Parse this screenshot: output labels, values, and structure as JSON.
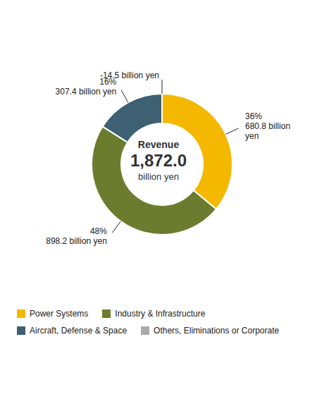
{
  "chart_data": {
    "type": "pie",
    "categories": [
      "Power Systems",
      "Industry & Infrastructure",
      "Aircraft, Defense & Space",
      "Others, Eliminations or Corporate"
    ],
    "values": [
      36,
      48,
      16,
      0.0001
    ],
    "colors": [
      "#F5B800",
      "#6B7C2E",
      "#3D6073",
      "#AAAAAA"
    ],
    "data_labels": true,
    "value_labels": [
      "36%\n680.8 billion\nyen",
      "48%\n898.2 billion yen",
      "16%\n307.4 billion yen",
      "-14.5 billion yen"
    ],
    "annotations": [
      "Revenue",
      "1,872.0",
      "billion yen"
    ],
    "legend": "bottom"
  }
}
